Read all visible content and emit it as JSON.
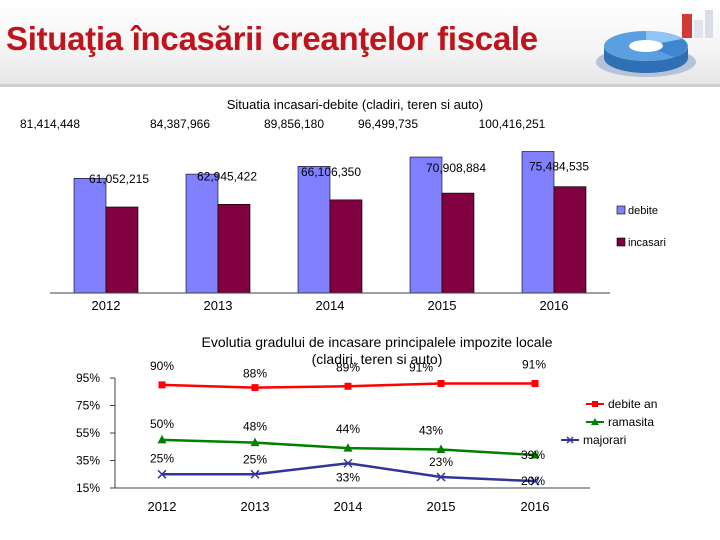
{
  "page": {
    "title": "Situaţia încasării creanţelor fiscale"
  },
  "colors": {
    "title": "#c0141c",
    "debite": "#8080ff",
    "incasari": "#800040",
    "line_debite": "#ff0000",
    "line_ramasita": "#008000",
    "line_majorari": "#333399"
  },
  "chart_data": [
    {
      "type": "bar",
      "title": "Situatia incasari-debite (cladiri, teren si auto)",
      "categories": [
        "2012",
        "2013",
        "2014",
        "2015",
        "2016"
      ],
      "series": [
        {
          "name": "debite",
          "values": [
            81414448,
            84387966,
            89856180,
            96499735,
            100416251
          ],
          "labels": [
            "81,414,448",
            "84,387,966",
            "89,856,180",
            "96,499,735",
            "100,416,251"
          ]
        },
        {
          "name": "incasari",
          "values": [
            61052215,
            62945422,
            66106350,
            70908884,
            75484535
          ],
          "labels": [
            "61,052,215",
            "62,945,422",
            "66,106,350",
            "70,908,884",
            "75,484,535"
          ]
        }
      ],
      "ylim": [
        0,
        110000000
      ],
      "legend": "right"
    },
    {
      "type": "line",
      "title_line1": "Evolutia gradului de incasare principalele impozite locale",
      "title_line2": "(cladiri, teren si auto)",
      "categories": [
        "2012",
        "2013",
        "2014",
        "2015",
        "2016"
      ],
      "y_ticks": [
        "95%",
        "75%",
        "55%",
        "35%",
        "15%"
      ],
      "ylim": [
        15,
        95
      ],
      "series": [
        {
          "name": "debite an",
          "values": [
            90,
            88,
            89,
            91,
            91
          ],
          "labels": [
            "90%",
            "88%",
            "89%",
            "91%",
            "91%"
          ]
        },
        {
          "name": "ramasita",
          "values": [
            50,
            48,
            44,
            43,
            39
          ],
          "labels": [
            "50%",
            "48%",
            "44%",
            "43%",
            "39%"
          ]
        },
        {
          "name": "majorari",
          "values": [
            25,
            25,
            33,
            23,
            20
          ],
          "labels": [
            "25%",
            "25%",
            "33%",
            "23%",
            "20%"
          ]
        }
      ],
      "legend": "right"
    }
  ]
}
